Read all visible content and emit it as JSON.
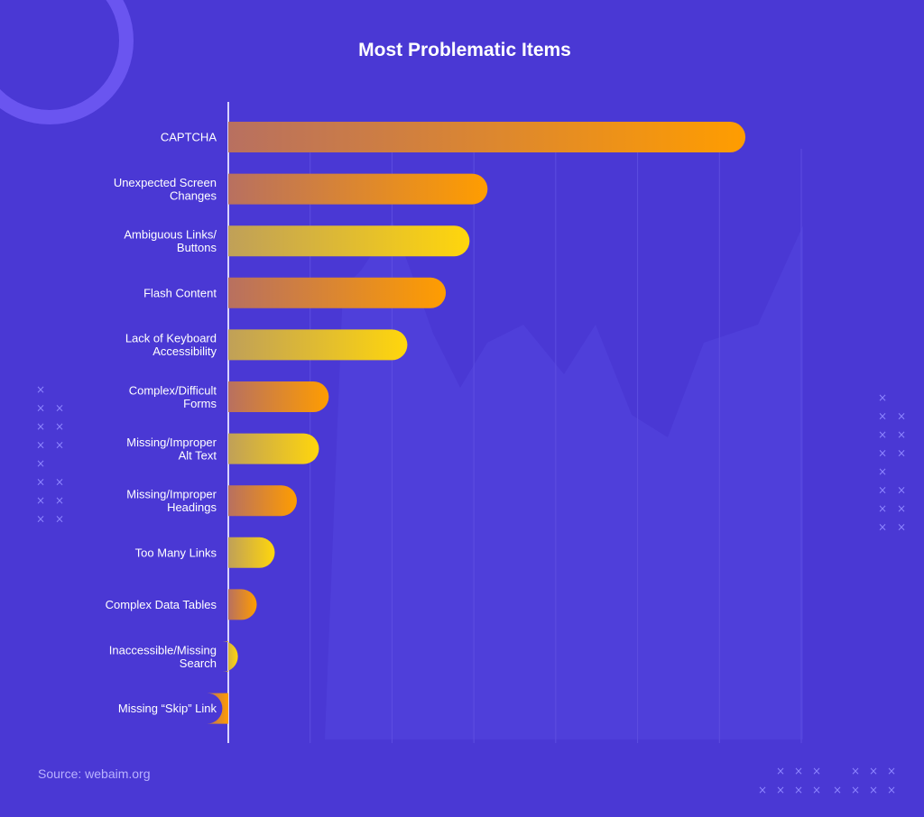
{
  "title": "Most Problematic Items",
  "source": "Source: webaim.org",
  "colors": {
    "background": "#4a38d4",
    "orange_end": "#ff9d00",
    "yellow_end": "#ffd60c",
    "bar_start": "#b87060"
  },
  "chart_data": {
    "type": "bar",
    "orientation": "horizontal",
    "title": "Most Problematic Items",
    "xlabel": "",
    "ylabel": "",
    "grid": true,
    "categories": [
      "CAPTCHA",
      "Unexpected Screen Changes",
      "Ambiguous Links/ Buttons",
      "Flash Content",
      "Lack of Keyboard Accessibility",
      "Complex/Difficult Forms",
      "Missing/Improper Alt Text",
      "Missing/Improper Headings",
      "Too Many Links",
      "Complex Data Tables",
      "Inaccessible/Missing Search",
      "Missing “Skip” Link"
    ],
    "label_lines": [
      [
        "CAPTCHA"
      ],
      [
        "Unexpected Screen",
        "Changes"
      ],
      [
        "Ambiguous Links/",
        "Buttons"
      ],
      [
        "Flash Content"
      ],
      [
        "Lack of Keyboard",
        "Accessibility"
      ],
      [
        "Complex/Difficult",
        "Forms"
      ],
      [
        "Missing/Improper",
        "Alt Text"
      ],
      [
        "Missing/Improper",
        "Headings"
      ],
      [
        "Too Many Links"
      ],
      [
        "Complex Data Tables"
      ],
      [
        "Inaccessible/Missing",
        "Search"
      ],
      [
        "Missing “Skip” Link"
      ]
    ],
    "values": [
      61.3,
      29.8,
      27.6,
      24.7,
      20.0,
      10.4,
      9.2,
      6.5,
      3.8,
      1.6,
      -0.7,
      -2.6
    ],
    "bar_colors": [
      "orange",
      "orange",
      "yellow",
      "orange",
      "yellow",
      "orange",
      "yellow",
      "orange",
      "yellow",
      "orange",
      "yellow",
      "orange"
    ],
    "xlim": [
      0,
      70
    ]
  }
}
